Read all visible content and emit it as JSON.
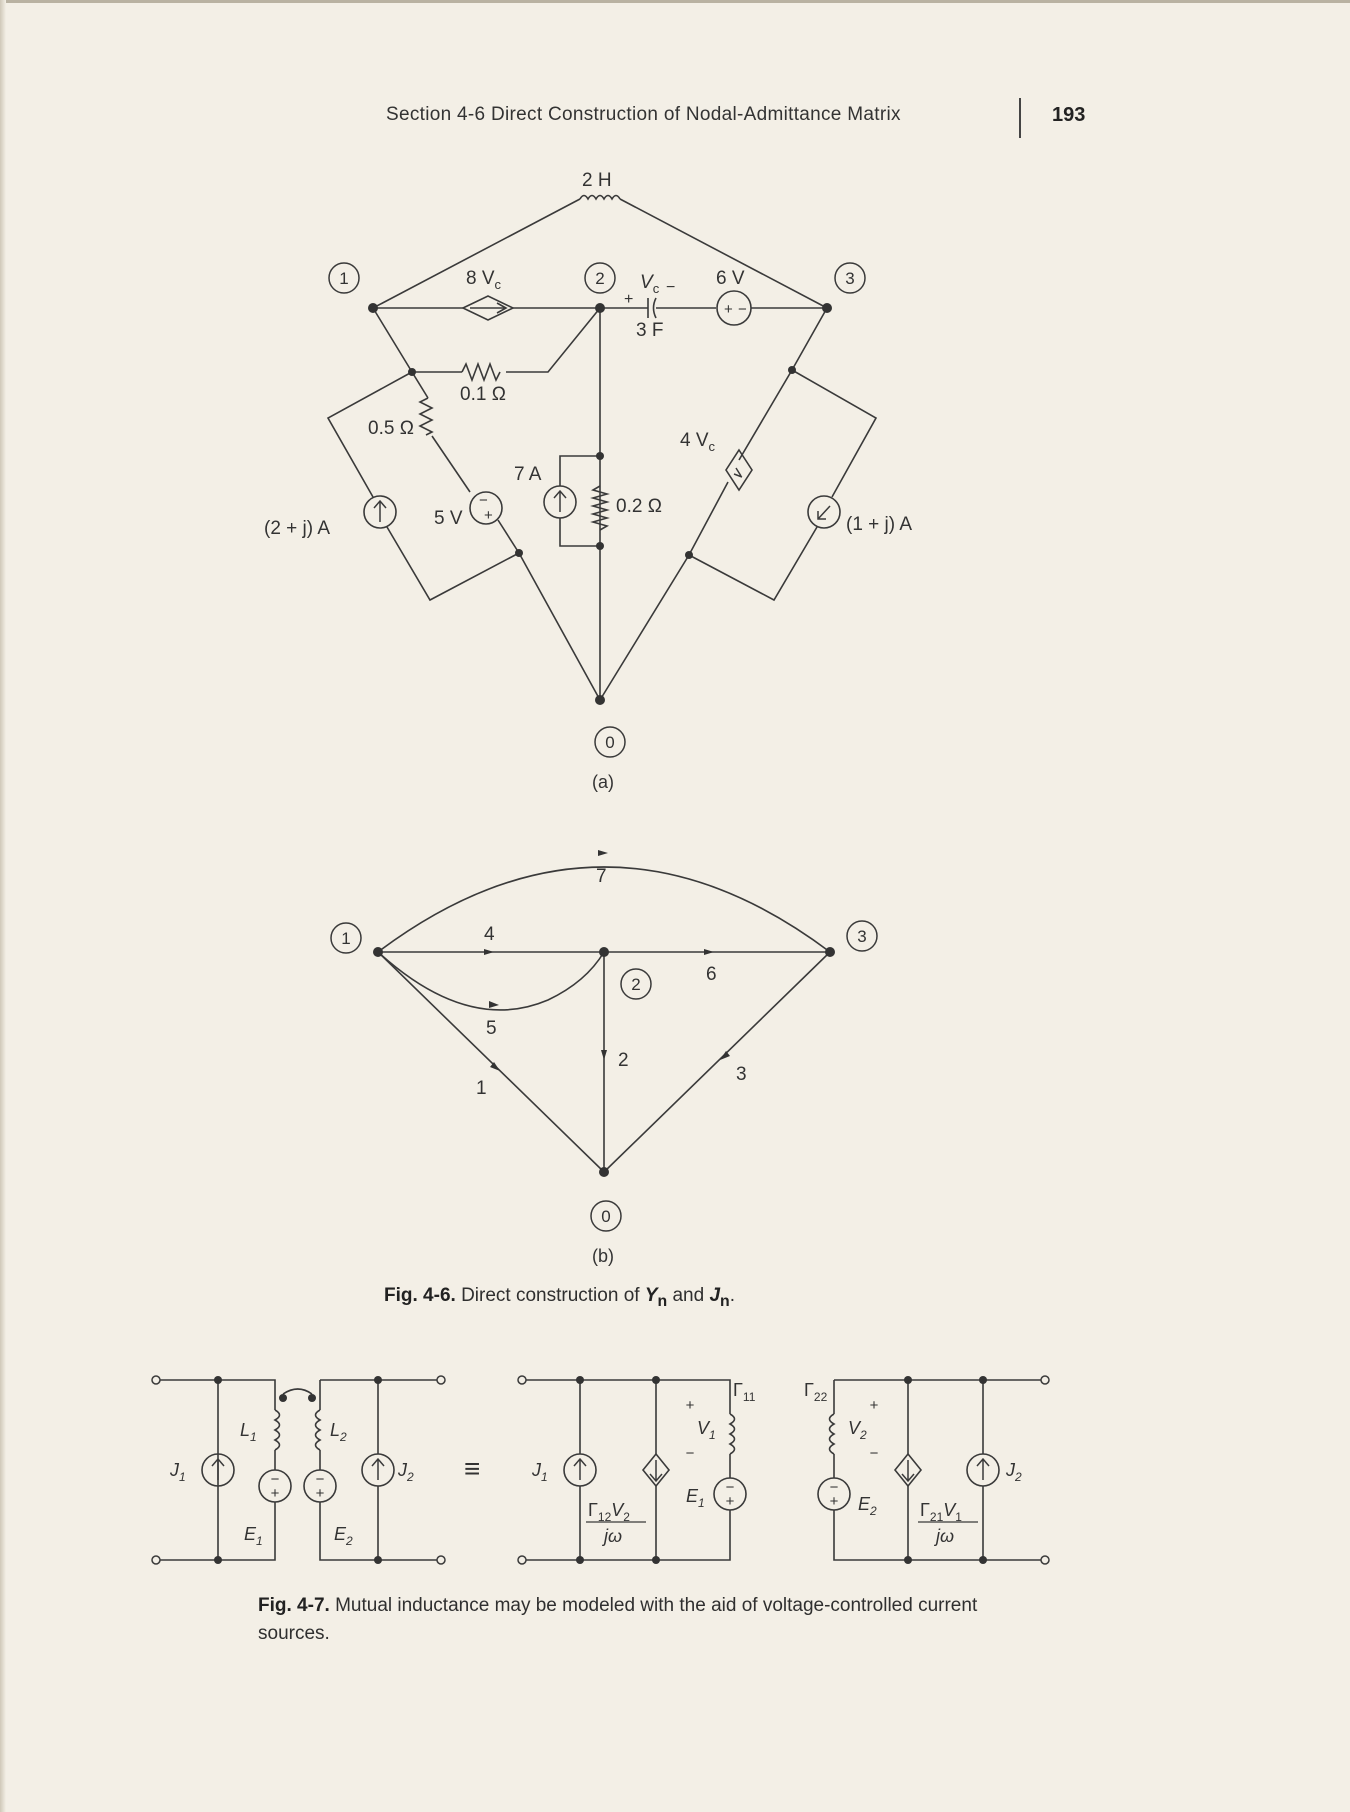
{
  "header": {
    "running_head": "Section 4-6   Direct Construction of Nodal-Admittance Matrix",
    "page_number": "193"
  },
  "figure_4_6a": {
    "sublabel": "(a)",
    "nodes": [
      "1",
      "2",
      "3",
      "0"
    ],
    "labels": {
      "inductor": "2 H",
      "dep_source_8": "8 V",
      "dep_source_8_sub": "c",
      "vc": "V",
      "vc_sub": "c",
      "vc_plus": "+",
      "vc_minus": "−",
      "capacitor": "3 F",
      "source_6v": "6 V",
      "r01": "0.1 Ω",
      "r05": "0.5 Ω",
      "r02": "0.2 Ω",
      "cur_7a": "7 A",
      "volt_5v": "5 V",
      "dep_source_4": "4 V",
      "dep_source_4_sub": "c",
      "cur_left": "(2 + j) A",
      "cur_right": "(1 + j) A"
    }
  },
  "figure_4_6b": {
    "sublabel": "(b)",
    "nodes": [
      "1",
      "2",
      "3",
      "0"
    ],
    "branches": [
      "7",
      "4",
      "6",
      "5",
      "2",
      "1",
      "3"
    ]
  },
  "caption_4_6": {
    "label": "Fig. 4-6.",
    "text_pre": " Direct construction of ",
    "sym1": "Y",
    "sub1": "n",
    "text_mid": " and ",
    "sym2": "J",
    "sub2": "n",
    "text_post": "."
  },
  "figure_4_7": {
    "labels": {
      "J1": "J",
      "J1_sub": "1",
      "J2": "J",
      "J2_sub": "2",
      "L1": "L",
      "L1_sub": "1",
      "L2": "L",
      "L2_sub": "2",
      "E1": "E",
      "E1_sub": "1",
      "E2": "E",
      "E2_sub": "2",
      "V1": "V",
      "V1_sub": "1",
      "V2": "V",
      "V2_sub": "2",
      "G11": "Γ",
      "G11_sub": "11",
      "G22": "Γ",
      "G22_sub": "22",
      "G12": "Γ",
      "G12_sub": "12",
      "G21": "Γ",
      "G21_sub": "21",
      "jw": "jω",
      "equiv": "≡",
      "plus": "+",
      "minus": "−"
    }
  },
  "caption_4_7": {
    "label": "Fig. 4-7.",
    "text": " Mutual inductance may be modeled with the aid of voltage-controlled current sources."
  }
}
